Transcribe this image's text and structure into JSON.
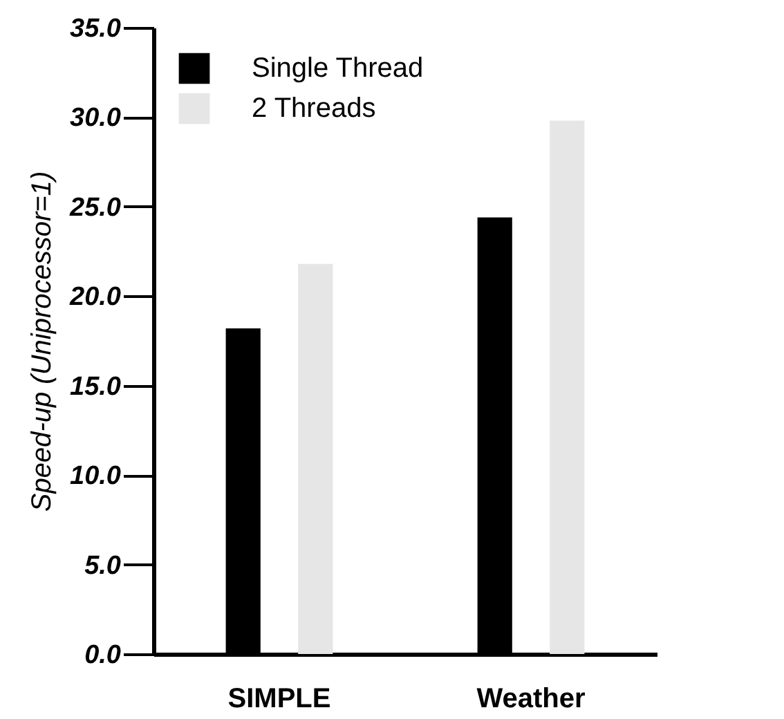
{
  "chart_data": {
    "type": "bar",
    "ylabel": "Speed-up (Uniprocessor=1)",
    "categories": [
      "SIMPLE",
      "Weather"
    ],
    "series": [
      {
        "name": "Single Thread",
        "color": "#000000",
        "values": [
          18.2,
          24.4
        ]
      },
      {
        "name": "2 Threads",
        "color": "#e6e6e6",
        "values": [
          21.8,
          29.8
        ]
      }
    ],
    "ylim": [
      0,
      35
    ],
    "yticks": [
      {
        "value": 0,
        "label": "0.0"
      },
      {
        "value": 5,
        "label": "5.0"
      },
      {
        "value": 10,
        "label": "10.0"
      },
      {
        "value": 15,
        "label": "15.0"
      },
      {
        "value": 20,
        "label": "20.0"
      },
      {
        "value": 25,
        "label": "25.0"
      },
      {
        "value": 30,
        "label": "30.0"
      },
      {
        "value": 35,
        "label": "35.0"
      }
    ],
    "legend": "top left",
    "grid": false
  }
}
